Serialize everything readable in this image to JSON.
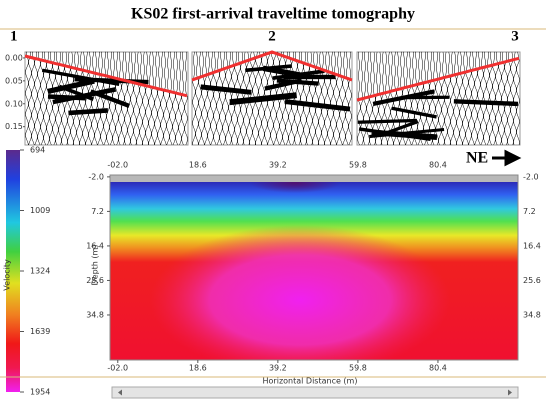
{
  "title": "KS02 first-arrival traveltime tomography",
  "panels": [
    {
      "label": "1"
    },
    {
      "label": "2"
    },
    {
      "label": "3"
    }
  ],
  "seismic": {
    "ylim": [
      -0.013,
      0.19
    ],
    "yticks": [
      {
        "value": 0,
        "label": "0.00"
      },
      {
        "value": 0.05,
        "label": "0.05"
      },
      {
        "value": 0.1,
        "label": "0.10"
      },
      {
        "value": 0.15,
        "label": "0.15"
      }
    ]
  },
  "colorbar": {
    "label": "Velocity",
    "lim": [
      694,
      1954
    ],
    "ticks": [
      694,
      1009,
      1324,
      1639,
      1954
    ]
  },
  "direction": "NE",
  "tomogram": {
    "xlabel": "Horizontal Distance (m)",
    "ylabel": "Depth (m)",
    "xlim": [
      -4,
      101
    ],
    "ylim": [
      -2.5,
      46.8
    ],
    "xticks": [
      {
        "value": -2,
        "label": "-02.0"
      },
      18.6,
      39.2,
      59.8,
      80.4
    ],
    "yticks": [
      {
        "value": -2,
        "label": "-2.0"
      },
      7.2,
      16.4,
      25.6,
      34.8
    ]
  }
}
